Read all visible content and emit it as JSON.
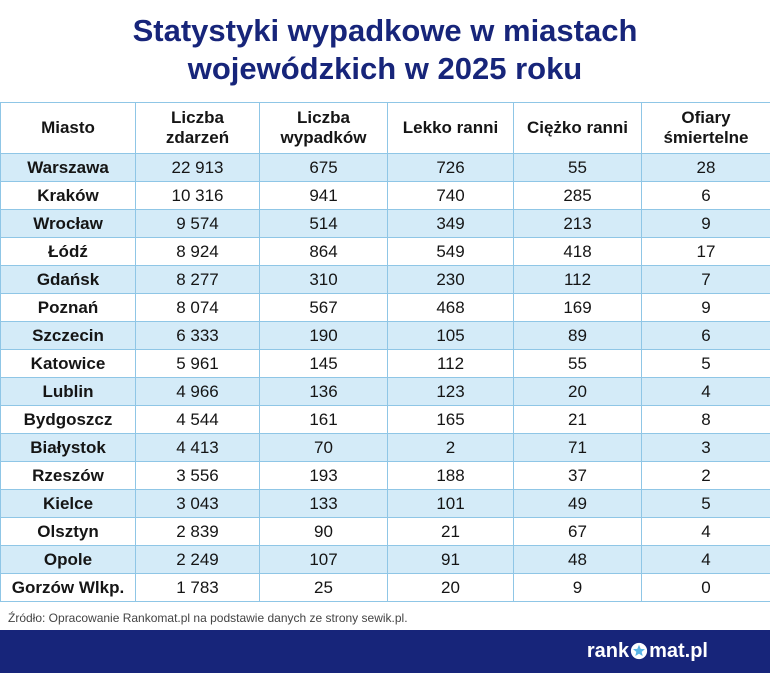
{
  "title": {
    "line1": "Statystyki wypadkowe w miastach",
    "line2": "wojewódzkich w 2025 roku"
  },
  "table": {
    "headers": [
      [
        "Miasto",
        ""
      ],
      [
        "Liczba",
        "zdarzeń"
      ],
      [
        "Liczba",
        "wypadków"
      ],
      [
        "Lekko ranni",
        ""
      ],
      [
        "Ciężko ranni",
        ""
      ],
      [
        "Ofiary",
        "śmiertelne"
      ]
    ],
    "rows": [
      [
        "Warszawa",
        "22 913",
        "675",
        "726",
        "55",
        "28"
      ],
      [
        "Kraków",
        "10 316",
        "941",
        "740",
        "285",
        "6"
      ],
      [
        "Wrocław",
        "9 574",
        "514",
        "349",
        "213",
        "9"
      ],
      [
        "Łódź",
        "8 924",
        "864",
        "549",
        "418",
        "17"
      ],
      [
        "Gdańsk",
        "8 277",
        "310",
        "230",
        "112",
        "7"
      ],
      [
        "Poznań",
        "8 074",
        "567",
        "468",
        "169",
        "9"
      ],
      [
        "Szczecin",
        "6 333",
        "190",
        "105",
        "89",
        "6"
      ],
      [
        "Katowice",
        "5 961",
        "145",
        "112",
        "55",
        "5"
      ],
      [
        "Lublin",
        "4 966",
        "136",
        "123",
        "20",
        "4"
      ],
      [
        "Bydgoszcz",
        "4 544",
        "161",
        "165",
        "21",
        "8"
      ],
      [
        "Białystok",
        "4 413",
        "70",
        "2",
        "71",
        "3"
      ],
      [
        "Rzeszów",
        "3 556",
        "193",
        "188",
        "37",
        "2"
      ],
      [
        "Kielce",
        "3 043",
        "133",
        "101",
        "49",
        "5"
      ],
      [
        "Olsztyn",
        "2 839",
        "90",
        "21",
        "67",
        "4"
      ],
      [
        "Opole",
        "2 249",
        "107",
        "91",
        "48",
        "4"
      ],
      [
        "Gorzów Wlkp.",
        "1 783",
        "25",
        "20",
        "9",
        "0"
      ]
    ]
  },
  "source": "Źródło: Opracowanie Rankomat.pl na podstawie danych ze strony sewik.pl.",
  "logo": {
    "left": "rank",
    "right": "mat.pl",
    "star_icon": "star-icon"
  },
  "colors": {
    "brand_navy": "#17257a",
    "row_stripe": "#d4ebf8",
    "grid_line": "#8fc6e6",
    "logo_star": "#5ab4e5"
  }
}
